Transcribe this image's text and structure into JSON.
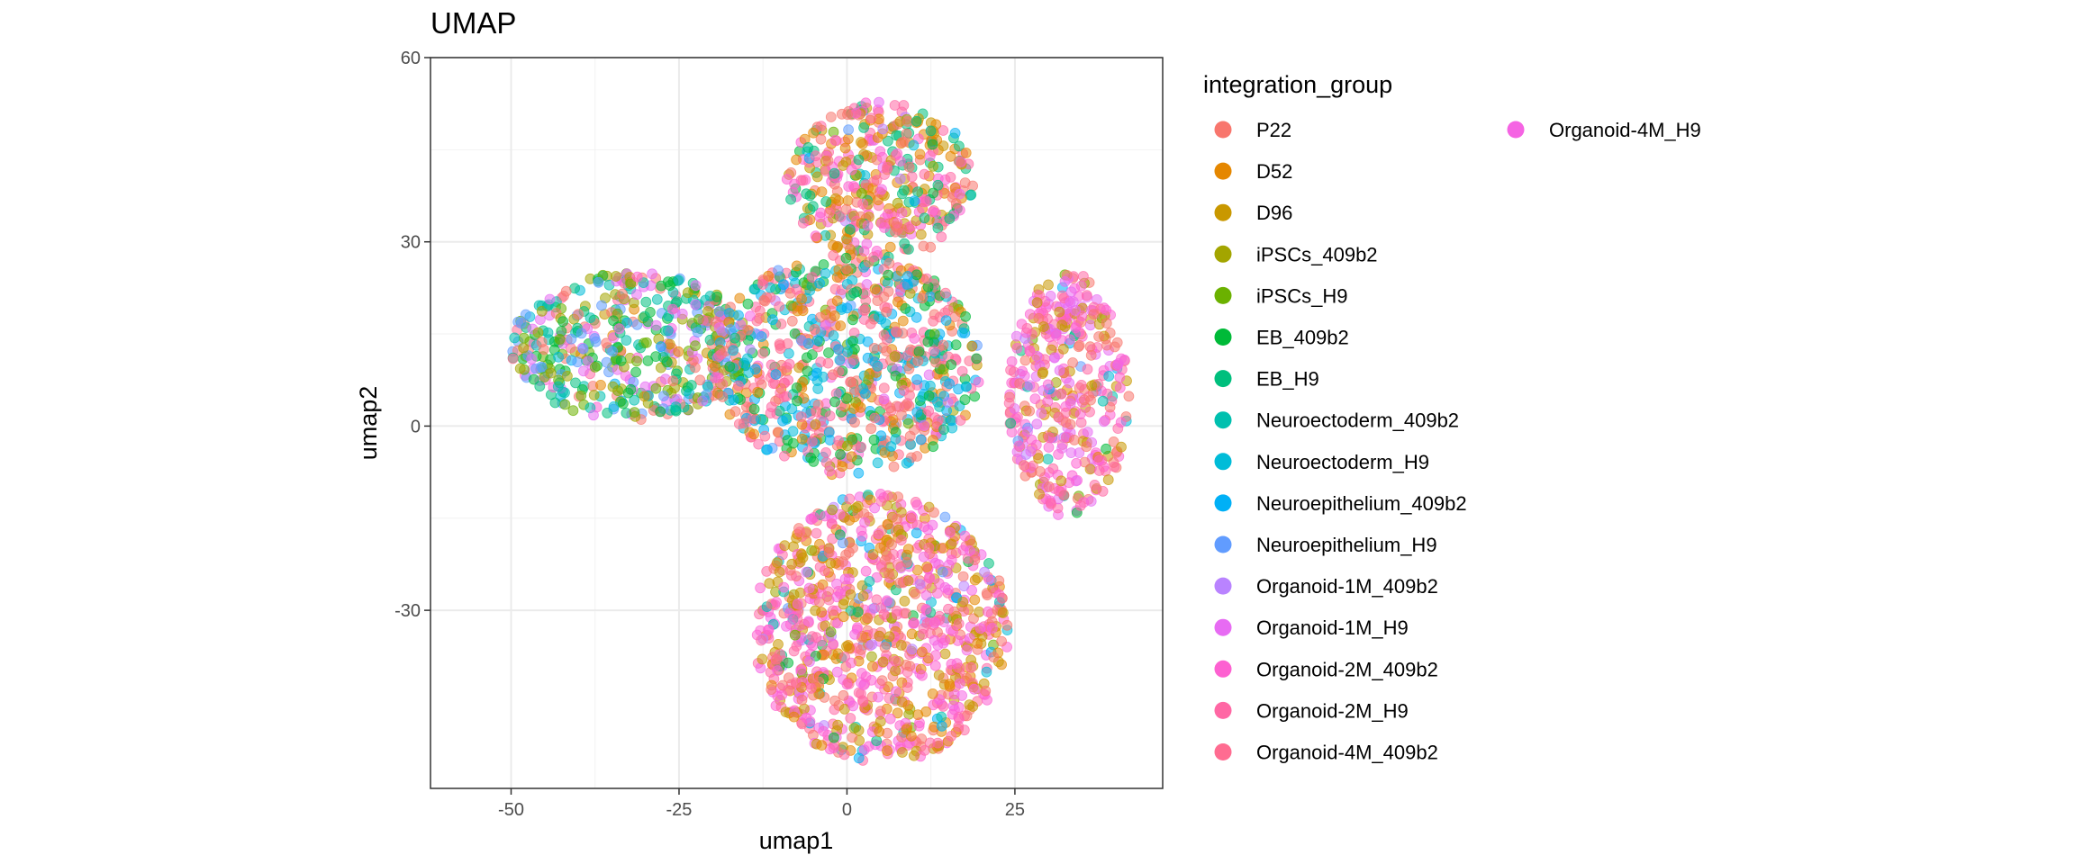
{
  "chart_data": {
    "type": "scatter",
    "title": "UMAP",
    "xlabel": "umap1",
    "ylabel": "umap2",
    "xlim": [
      -62,
      47
    ],
    "ylim": [
      -59,
      60
    ],
    "x_ticks": [
      -50,
      -25,
      0,
      25
    ],
    "x_tick_labels": [
      "-50",
      "-25",
      "0",
      "25"
    ],
    "y_ticks": [
      -30,
      0,
      30,
      60
    ],
    "y_tick_labels": [
      "-30",
      "0",
      "30",
      "60"
    ],
    "grid": true,
    "legend_position": "right",
    "legend": {
      "title": "integration_group",
      "entries": [
        {
          "name": "P22",
          "color": "#F8766D"
        },
        {
          "name": "D52",
          "color": "#E58700"
        },
        {
          "name": "D96",
          "color": "#C99800"
        },
        {
          "name": "iPSCs_409b2",
          "color": "#A3A500"
        },
        {
          "name": "iPSCs_H9",
          "color": "#6BB100"
        },
        {
          "name": "EB_409b2",
          "color": "#00BA38"
        },
        {
          "name": "EB_H9",
          "color": "#00BF7D"
        },
        {
          "name": "Neuroectoderm_409b2",
          "color": "#00C0AF"
        },
        {
          "name": "Neuroectoderm_H9",
          "color": "#00BCD8"
        },
        {
          "name": "Neuroepithelium_409b2",
          "color": "#00B0F6"
        },
        {
          "name": "Neuroepithelium_H9",
          "color": "#619CFF"
        },
        {
          "name": "Organoid-1M_409b2",
          "color": "#B983FF"
        },
        {
          "name": "Organoid-1M_H9",
          "color": "#E76BF3"
        },
        {
          "name": "Organoid-2M_409b2",
          "color": "#FD61D1"
        },
        {
          "name": "Organoid-2M_H9",
          "color": "#FF67A4"
        },
        {
          "name": "Organoid-4M_409b2",
          "color": "#FF6C91"
        },
        {
          "name": "Organoid-4M_H9",
          "color": "#F564E3"
        }
      ]
    },
    "clusters": [
      {
        "label": "upper lobe",
        "center": [
          5,
          40
        ],
        "radius": [
          14,
          13
        ],
        "groups": [
          "Organoid-2M_409b2",
          "Organoid-2M_H9",
          "D52",
          "D96",
          "P22",
          "EB_H9"
        ]
      },
      {
        "label": "left arm",
        "center": [
          -32,
          13
        ],
        "radius": [
          18,
          12
        ],
        "groups": [
          "iPSCs_409b2",
          "iPSCs_H9",
          "EB_409b2",
          "EB_H9",
          "Neuroectoderm_409b2",
          "Neuroepithelium_H9",
          "P22",
          "Organoid-1M_H9"
        ]
      },
      {
        "label": "center",
        "center": [
          0,
          10
        ],
        "radius": [
          20,
          18
        ],
        "groups": [
          "P22",
          "D52",
          "EB_409b2",
          "Neuroectoderm_H9",
          "Neuroepithelium_409b2",
          "Organoid-2M_H9",
          "Organoid-4M_409b2"
        ]
      },
      {
        "label": "lower lobe",
        "center": [
          5,
          -33
        ],
        "radius": [
          19,
          22
        ],
        "groups": [
          "D52",
          "D96",
          "P22",
          "Organoid-2M_409b2",
          "Organoid-2M_H9",
          "Organoid-4M_H9"
        ]
      },
      {
        "label": "right lobe",
        "center": [
          33,
          5
        ],
        "radius": [
          9,
          20
        ],
        "groups": [
          "Organoid-2M_409b2",
          "Organoid-2M_H9",
          "D96",
          "P22",
          "Organoid-1M_H9"
        ]
      }
    ]
  }
}
